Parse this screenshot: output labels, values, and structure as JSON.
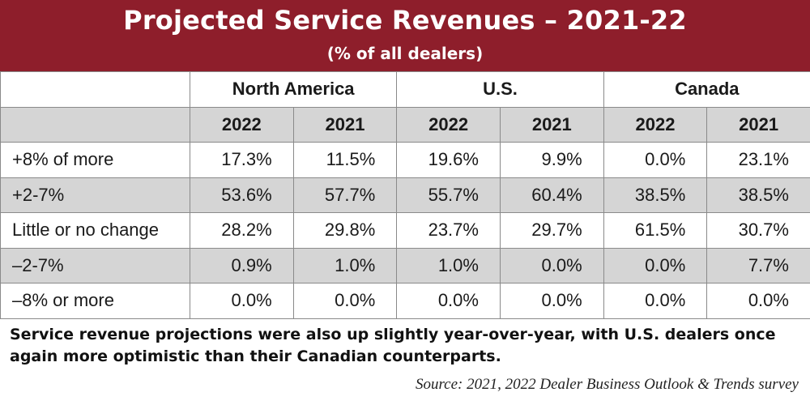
{
  "header": {
    "title": "Projected Service Revenues – 2021-22",
    "subtitle": "(% of all dealers)"
  },
  "colors": {
    "header_bg": "#8e1e2b",
    "header_text": "#ffffff",
    "shaded_row": "#d5d5d5",
    "border": "#8a8a8a"
  },
  "chart_data": {
    "type": "table",
    "title": "Projected Service Revenues – 2021-22",
    "subtitle": "(% of all dealers)",
    "regions": [
      "North America",
      "U.S.",
      "Canada"
    ],
    "years": [
      "2022",
      "2021"
    ],
    "rows": [
      {
        "label": "+8% of more",
        "values": [
          "17.3%",
          "11.5%",
          "19.6%",
          "9.9%",
          "0.0%",
          "23.1%"
        ]
      },
      {
        "label": "+2-7%",
        "values": [
          "53.6%",
          "57.7%",
          "55.7%",
          "60.4%",
          "38.5%",
          "38.5%"
        ]
      },
      {
        "label": "Little or no change",
        "values": [
          "28.2%",
          "29.8%",
          "23.7%",
          "29.7%",
          "61.5%",
          "30.7%"
        ]
      },
      {
        "label": "–2-7%",
        "values": [
          "0.9%",
          "1.0%",
          "1.0%",
          "0.0%",
          "0.0%",
          "7.7%"
        ]
      },
      {
        "label": "–8% or more",
        "values": [
          "0.0%",
          "0.0%",
          "0.0%",
          "0.0%",
          "0.0%",
          "0.0%"
        ]
      }
    ]
  },
  "caption": "Service revenue projections were also up slightly year-over-year, with U.S. dealers once again more optimistic than their Canadian counterparts.",
  "source": "Source: 2021, 2022 Dealer Business Outlook & Trends survey"
}
